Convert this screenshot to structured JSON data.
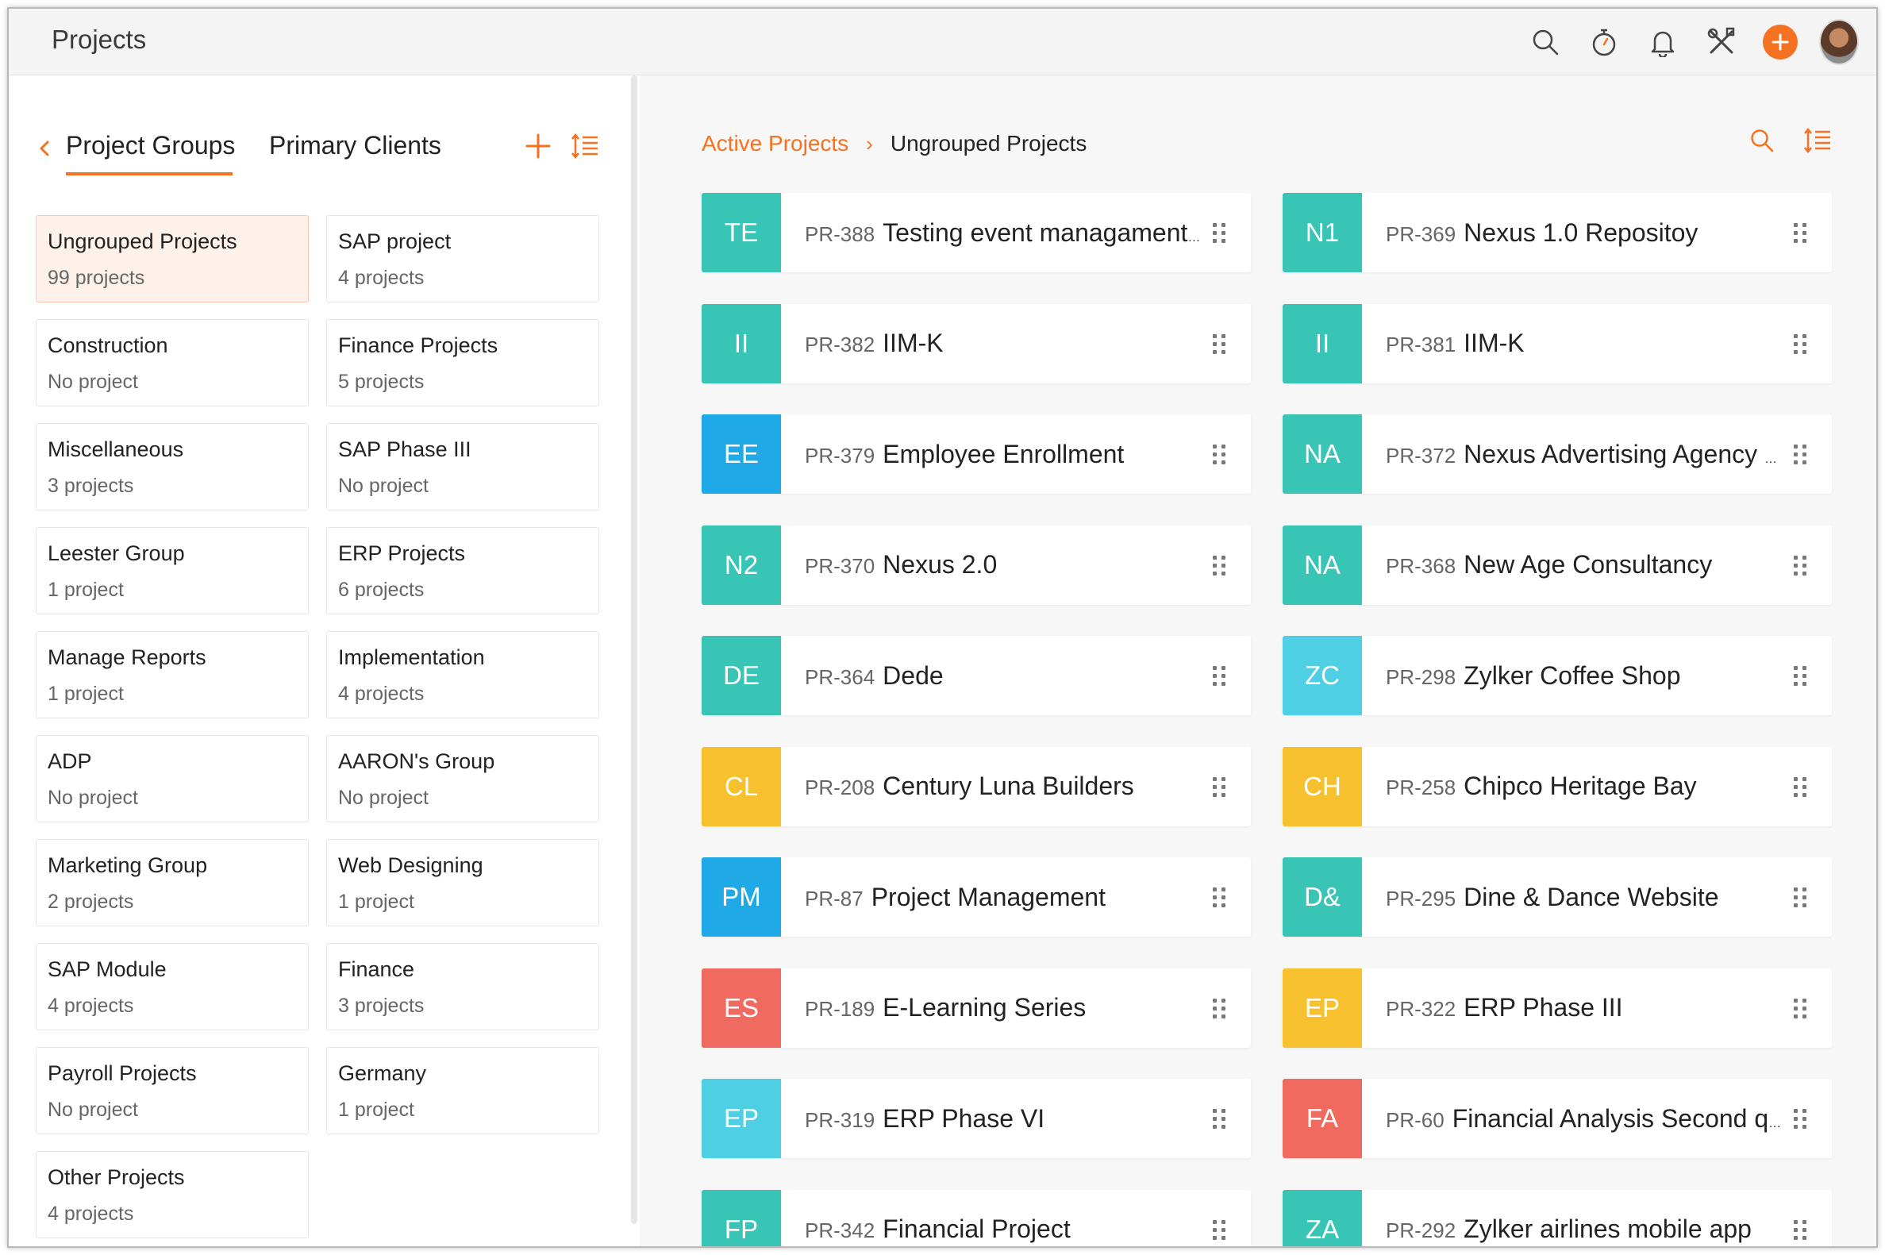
{
  "app": {
    "title": "Projects"
  },
  "topbar": {
    "icons": [
      "search-icon",
      "timer-icon",
      "bell-icon",
      "tools-icon",
      "add-icon",
      "user-avatar"
    ],
    "accent_color": "#f47221"
  },
  "left_panel": {
    "tabs": [
      {
        "label": "Project Groups",
        "active": true
      },
      {
        "label": "Primary Clients",
        "active": false
      }
    ],
    "groups": [
      {
        "name": "Ungrouped Projects",
        "count": "99 projects",
        "active": true
      },
      {
        "name": "SAP project",
        "count": "4 projects"
      },
      {
        "name": "Construction",
        "count": "No project"
      },
      {
        "name": "Finance Projects",
        "count": "5 projects"
      },
      {
        "name": "Miscellaneous",
        "count": "3 projects"
      },
      {
        "name": "SAP Phase III",
        "count": "No project"
      },
      {
        "name": "Leester Group",
        "count": "1 project"
      },
      {
        "name": "ERP Projects",
        "count": "6 projects"
      },
      {
        "name": "Manage Reports",
        "count": "1 project"
      },
      {
        "name": "Implementation",
        "count": "4 projects"
      },
      {
        "name": "ADP",
        "count": "No project"
      },
      {
        "name": "AARON's Group",
        "count": "No project"
      },
      {
        "name": "Marketing Group",
        "count": "2 projects"
      },
      {
        "name": "Web Designing",
        "count": "1 project"
      },
      {
        "name": "SAP Module",
        "count": "4 projects"
      },
      {
        "name": "Finance",
        "count": "3 projects"
      },
      {
        "name": "Payroll Projects",
        "count": "No project"
      },
      {
        "name": "Germany",
        "count": "1 project"
      },
      {
        "name": "Other Projects",
        "count": "4 projects"
      }
    ]
  },
  "right_panel": {
    "breadcrumb": {
      "parent": "Active Projects",
      "separator": "›",
      "current": "Ungrouped Projects"
    },
    "projects": [
      {
        "badge": "TE",
        "color": "#39c5b5",
        "id": "PR-388",
        "name": "Testing event managament tool"
      },
      {
        "badge": "N1",
        "color": "#39c5b5",
        "id": "PR-369",
        "name": "Nexus 1.0 Repositoy"
      },
      {
        "badge": "II",
        "color": "#39c5b5",
        "id": "PR-382",
        "name": "IIM-K"
      },
      {
        "badge": "II",
        "color": "#39c5b5",
        "id": "PR-381",
        "name": "IIM-K"
      },
      {
        "badge": "EE",
        "color": "#1fa9e6",
        "id": "PR-379",
        "name": "Employee Enrollment"
      },
      {
        "badge": "NA",
        "color": "#39c5b5",
        "id": "PR-372",
        "name": "Nexus Advertising Agency Project"
      },
      {
        "badge": "N2",
        "color": "#39c5b5",
        "id": "PR-370",
        "name": "Nexus 2.0"
      },
      {
        "badge": "NA",
        "color": "#39c5b5",
        "id": "PR-368",
        "name": "New Age Consultancy"
      },
      {
        "badge": "DE",
        "color": "#39c5b5",
        "id": "PR-364",
        "name": "Dede"
      },
      {
        "badge": "ZC",
        "color": "#4ecfe4",
        "id": "PR-298",
        "name": "Zylker Coffee Shop"
      },
      {
        "badge": "CL",
        "color": "#f7c02e",
        "id": "PR-208",
        "name": "Century Luna Builders"
      },
      {
        "badge": "CH",
        "color": "#f7c02e",
        "id": "PR-258",
        "name": "Chipco Heritage Bay"
      },
      {
        "badge": "PM",
        "color": "#1fa9e6",
        "id": "PR-87",
        "name": "Project Management"
      },
      {
        "badge": "D&",
        "color": "#39c5b5",
        "id": "PR-295",
        "name": "Dine & Dance Website"
      },
      {
        "badge": "ES",
        "color": "#f06a60",
        "id": "PR-189",
        "name": "E-Learning Series"
      },
      {
        "badge": "EP",
        "color": "#f7c02e",
        "id": "PR-322",
        "name": "ERP Phase III"
      },
      {
        "badge": "EP",
        "color": "#4ecfe4",
        "id": "PR-319",
        "name": "ERP Phase VI"
      },
      {
        "badge": "FA",
        "color": "#f06a60",
        "id": "PR-60",
        "name": "Financial Analysis Second quarter"
      },
      {
        "badge": "FP",
        "color": "#39c5b5",
        "id": "PR-342",
        "name": "Financial Project"
      },
      {
        "badge": "ZA",
        "color": "#39c5b5",
        "id": "PR-292",
        "name": "Zylker airlines mobile app"
      }
    ]
  }
}
